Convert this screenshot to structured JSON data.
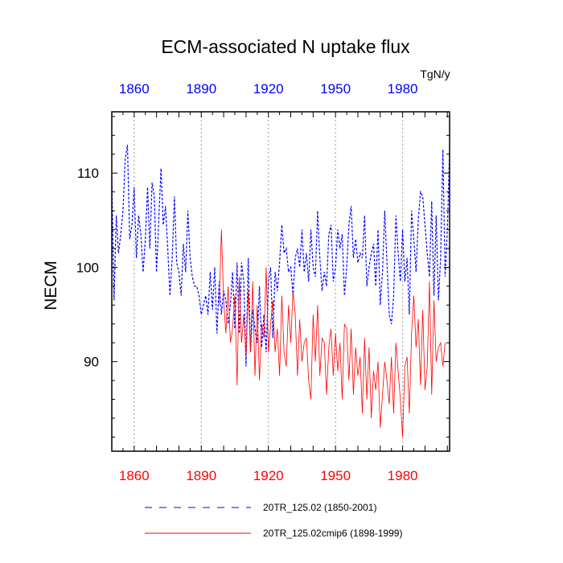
{
  "chart_data": {
    "type": "line",
    "title": "ECM-associated N uptake flux",
    "units_label": "TgN/y",
    "ylabel": "NECM",
    "xlabel": "",
    "xlim": [
      1850,
      2001
    ],
    "ylim": [
      80.5,
      116.5
    ],
    "x_ticks": [
      1860,
      1890,
      1920,
      1950,
      1980
    ],
    "y_ticks": [
      90,
      100,
      110
    ],
    "top_tick_color": "#0000ff",
    "bottom_tick_color": "#ff0000",
    "grid": "vertical-dotted",
    "legend_position": "bottom",
    "series": [
      {
        "name": "20TR_125.02 (1850-2001)",
        "color": "#0000ff",
        "style": "dashed",
        "x_start": 1850,
        "values": [
          109.5,
          96.5,
          105.5,
          101.5,
          103.5,
          106.0,
          111.5,
          113.0,
          103.0,
          104.5,
          108.5,
          101.0,
          105.5,
          103.5,
          99.5,
          103.0,
          108.5,
          102.0,
          109.0,
          107.5,
          99.5,
          105.0,
          110.5,
          104.5,
          106.5,
          102.0,
          97.0,
          101.0,
          107.5,
          100.5,
          99.5,
          97.0,
          102.5,
          99.5,
          106.0,
          101.0,
          99.0,
          98.0,
          98.0,
          97.0,
          95.0,
          96.0,
          97.0,
          95.0,
          99.5,
          95.5,
          100.0,
          93.0,
          98.5,
          95.0,
          97.5,
          96.5,
          94.0,
          96.0,
          99.5,
          93.5,
          100.5,
          93.0,
          100.5,
          98.5,
          89.5,
          101.0,
          91.0,
          95.5,
          93.5,
          92.0,
          98.0,
          91.5,
          95.0,
          91.0,
          98.5,
          100.0,
          92.5,
          99.5,
          97.5,
          100.5,
          104.5,
          101.5,
          102.0,
          99.5,
          100.0,
          97.0,
          101.0,
          102.0,
          100.0,
          104.0,
          99.5,
          101.5,
          98.5,
          104.0,
          100.0,
          99.0,
          106.0,
          101.0,
          97.5,
          99.5,
          98.0,
          103.5,
          104.5,
          98.5,
          100.0,
          104.0,
          102.0,
          103.5,
          97.0,
          100.0,
          104.5,
          106.5,
          101.0,
          103.0,
          100.5,
          101.5,
          101.0,
          105.5,
          98.0,
          100.0,
          101.5,
          102.5,
          98.0,
          104.0,
          96.0,
          99.5,
          106.0,
          100.5,
          95.0,
          94.0,
          97.0,
          105.5,
          101.5,
          98.5,
          104.0,
          98.5,
          101.0,
          95.0,
          106.0,
          103.0,
          99.5,
          105.0,
          108.0,
          107.5,
          104.5,
          101.5,
          99.0,
          107.0,
          97.0,
          105.5,
          96.5,
          101.0,
          112.5,
          99.0,
          104.0,
          112.5
        ]
      },
      {
        "name": "20TR_125.02cmip6 (1898-1999)",
        "color": "#ff0000",
        "style": "solid",
        "x_start": 1898,
        "values": [
          96.0,
          104.0,
          96.5,
          93.0,
          98.0,
          92.0,
          93.5,
          97.0,
          87.5,
          99.0,
          92.0,
          95.0,
          90.5,
          97.5,
          91.0,
          98.5,
          88.5,
          96.0,
          88.0,
          94.0,
          92.5,
          100.0,
          91.0,
          94.0,
          96.5,
          91.0,
          93.5,
          88.5,
          97.0,
          91.0,
          89.5,
          96.0,
          92.0,
          97.5,
          95.0,
          88.5,
          94.5,
          90.0,
          92.0,
          92.5,
          88.0,
          86.0,
          95.0,
          90.0,
          96.0,
          88.5,
          92.5,
          92.0,
          86.5,
          91.5,
          93.5,
          88.5,
          93.0,
          89.0,
          92.0,
          86.0,
          94.0,
          93.5,
          88.0,
          93.5,
          86.5,
          91.5,
          88.5,
          90.5,
          84.5,
          92.5,
          86.0,
          91.5,
          84.0,
          89.0,
          87.0,
          90.0,
          83.0,
          86.5,
          90.0,
          88.0,
          85.5,
          90.5,
          84.5,
          92.0,
          89.0,
          86.0,
          82.0,
          89.5,
          90.5,
          84.5,
          93.0,
          97.0,
          91.5,
          94.5,
          87.5,
          95.5,
          87.0,
          89.5,
          98.5,
          86.5,
          96.5,
          90.0,
          91.5,
          92.0,
          89.5,
          92.0
        ]
      }
    ]
  }
}
